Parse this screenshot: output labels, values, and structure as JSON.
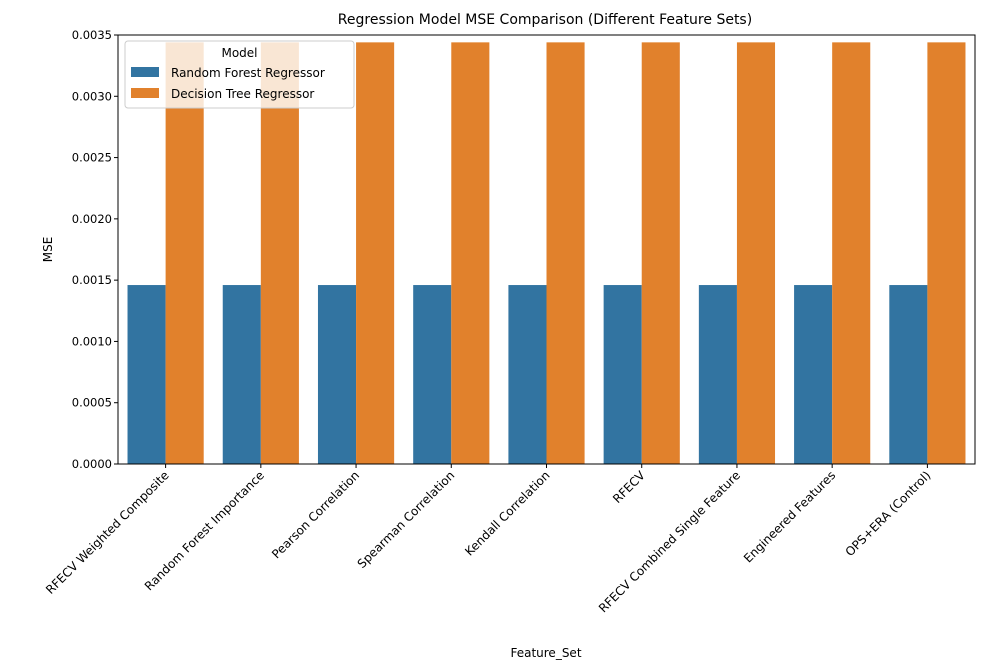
{
  "chart_data": {
    "type": "bar",
    "title": "Regression Model MSE Comparison (Different Feature Sets)",
    "xlabel": "Feature_Set",
    "ylabel": "MSE",
    "ylim": [
      0,
      0.0035
    ],
    "yticks": [
      "0.0000",
      "0.0005",
      "0.0010",
      "0.0015",
      "0.0020",
      "0.0025",
      "0.0030",
      "0.0035"
    ],
    "categories": [
      "RFECV Weighted Composite",
      "Random Forest Importance",
      "Pearson Correlation",
      "Spearman Correlation",
      "Kendall Correlation",
      "RFECV",
      "RFECV Combined Single Feature",
      "Engineered Features",
      "OPS+ERA (Control)"
    ],
    "series": [
      {
        "name": "Random Forest Regressor",
        "color": "#3274a1",
        "values": [
          0.00146,
          0.00146,
          0.00146,
          0.00146,
          0.00146,
          0.00146,
          0.00146,
          0.00146,
          0.00146
        ]
      },
      {
        "name": "Decision Tree Regressor",
        "color": "#e1812c",
        "values": [
          0.00344,
          0.00344,
          0.00344,
          0.00344,
          0.00344,
          0.00344,
          0.00344,
          0.00344,
          0.00344
        ]
      }
    ],
    "legend": {
      "title": "Model",
      "placement": "top-left"
    },
    "grid": false
  }
}
